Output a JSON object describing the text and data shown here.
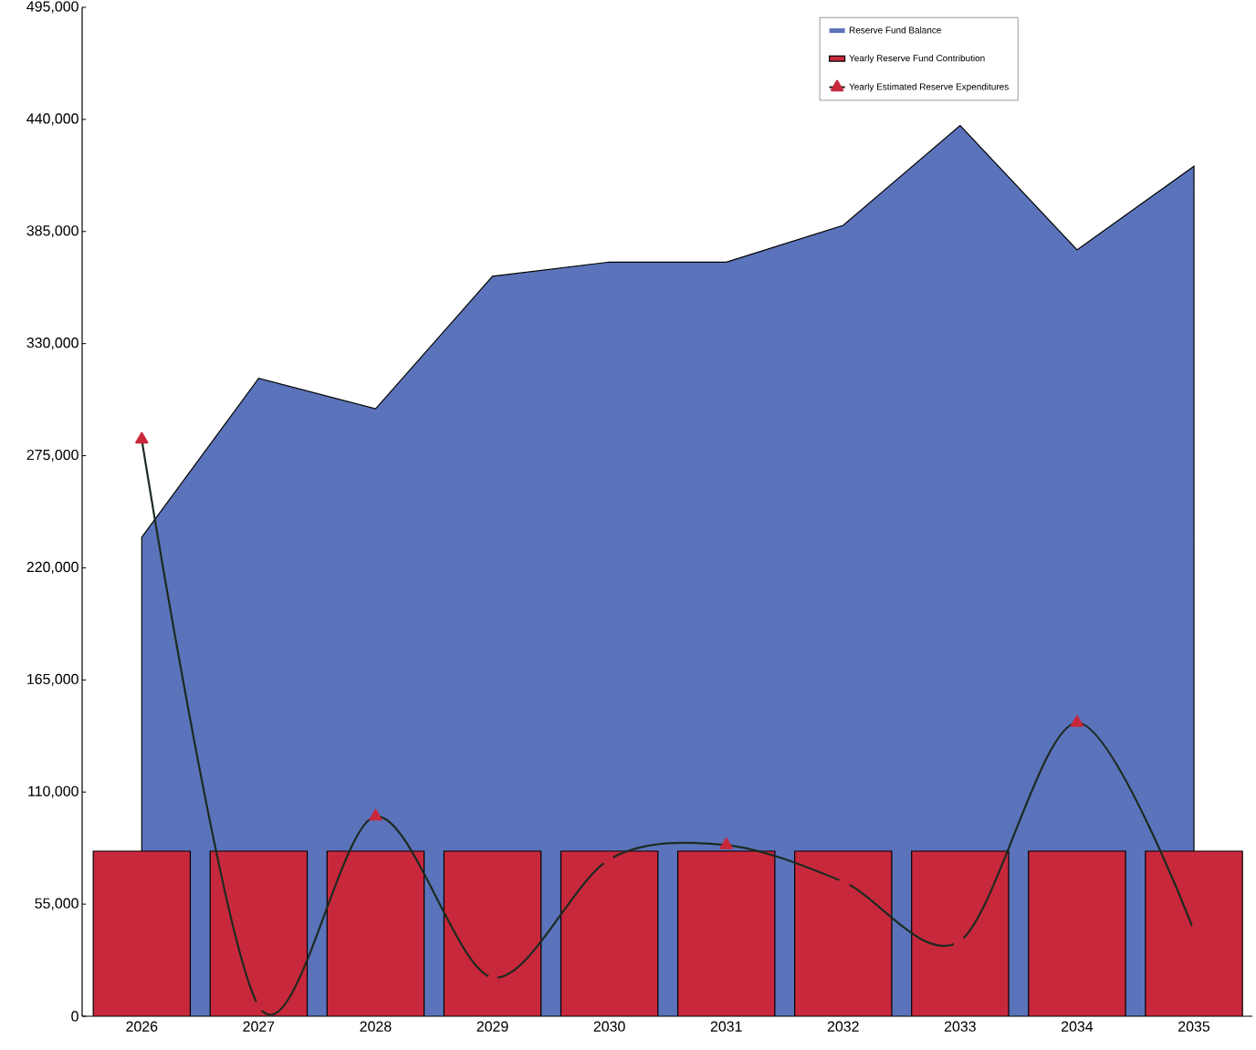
{
  "chart_data": {
    "type": "bar",
    "categories": [
      "2026",
      "2027",
      "2028",
      "2029",
      "2030",
      "2031",
      "2032",
      "2033",
      "2034",
      "2035"
    ],
    "series": [
      {
        "name": "Reserve Fund Balance",
        "type": "area",
        "color": "#5b73ba",
        "values": [
          235000,
          313000,
          298000,
          363000,
          370000,
          370000,
          388000,
          437000,
          376000,
          417000
        ]
      },
      {
        "name": "Yearly Reserve Fund Contribution",
        "color": "#c8283c",
        "values": [
          81000,
          81000,
          81000,
          81000,
          81000,
          81000,
          81000,
          81000,
          81000,
          81000
        ]
      },
      {
        "name": "Yearly Estimated Reserve Expenditures",
        "type": "line",
        "color": "#1c2a20",
        "marker": "triangle",
        "line_style": "solid",
        "values": [
          283000,
          5000,
          98000,
          19000,
          77000,
          84000,
          66000,
          37000,
          144000,
          42000
        ]
      }
    ],
    "ylim": [
      0,
      495000
    ],
    "yticks": [
      0,
      {
        "value": 55000,
        "label": "55,000"
      },
      {
        "value": 110000,
        "label": "110,000"
      },
      {
        "value": 165000,
        "label": "165,000"
      },
      {
        "value": 220000,
        "label": "220,000"
      },
      {
        "value": 275000,
        "label": "275,000"
      },
      {
        "value": 330000,
        "label": "330,000"
      },
      {
        "value": 385000,
        "label": "385,000"
      },
      {
        "value": 440000,
        "label": "440,000"
      },
      {
        "value": 495000,
        "label": "495,000"
      }
    ],
    "legend": "top right",
    "grid": false
  }
}
